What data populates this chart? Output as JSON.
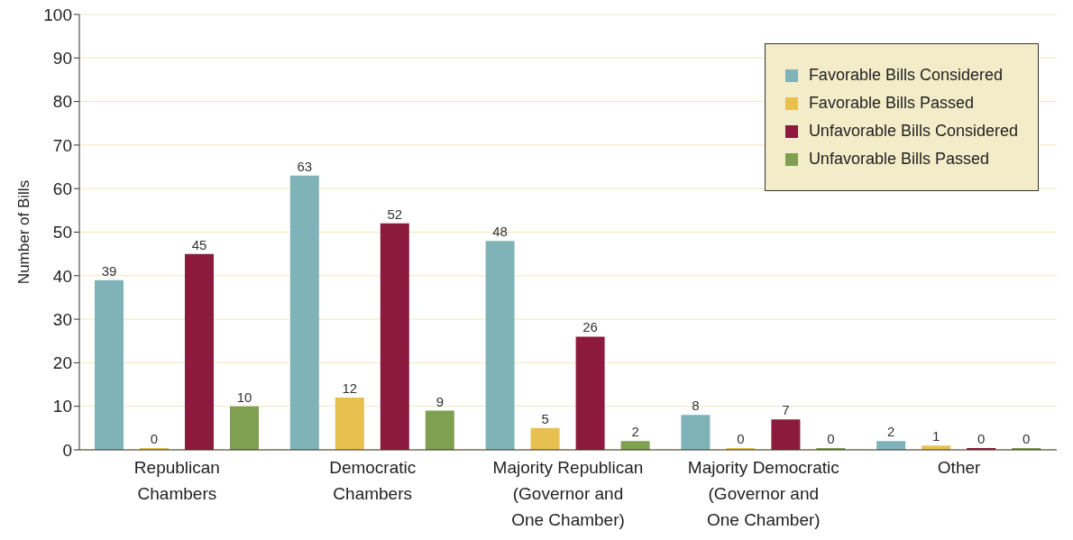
{
  "chart_data": {
    "type": "bar",
    "ylabel": "Number of Bills",
    "categories": [
      "Republican\nChambers",
      "Democratic\nChambers",
      "Majority Republican\n(Governor and\nOne Chamber)",
      "Majority Democratic\n(Governor and\nOne Chamber)",
      "Other"
    ],
    "series": [
      {
        "name": "Favorable Bills Considered",
        "color": "#7fb3b8",
        "values": [
          39,
          63,
          48,
          8,
          2
        ]
      },
      {
        "name": "Favorable Bills Passed",
        "color": "#e8c050",
        "values": [
          0,
          12,
          5,
          0,
          1
        ]
      },
      {
        "name": "Unfavorable Bills Considered",
        "color": "#8b1a3e",
        "values": [
          45,
          52,
          26,
          7,
          0
        ]
      },
      {
        "name": "Unfavorable Bills Passed",
        "color": "#7fa050",
        "values": [
          10,
          9,
          2,
          0,
          0
        ]
      }
    ],
    "ylim": [
      0,
      100
    ],
    "yticks": [
      0,
      10,
      20,
      30,
      40,
      50,
      60,
      70,
      80,
      90,
      100
    ],
    "grid": "y",
    "legend": "top right",
    "data_labels": true
  }
}
